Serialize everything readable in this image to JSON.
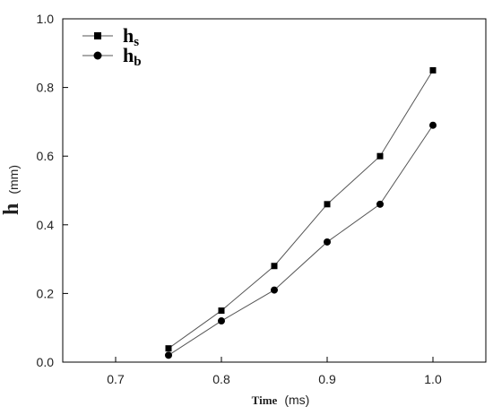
{
  "chart_data": {
    "type": "line",
    "x": [
      0.75,
      0.8,
      0.85,
      0.9,
      0.95,
      1.0
    ],
    "series": [
      {
        "name": "h_s",
        "label_main": "h",
        "label_sub": "s",
        "marker": "square",
        "color": "#000000",
        "values": [
          0.04,
          0.15,
          0.28,
          0.46,
          0.6,
          0.85
        ]
      },
      {
        "name": "h_b",
        "label_main": "h",
        "label_sub": "b",
        "marker": "circle",
        "color": "#000000",
        "values": [
          0.02,
          0.12,
          0.21,
          0.35,
          0.46,
          0.69
        ]
      }
    ],
    "xlabel": {
      "bold": "Time",
      "unit": "(ms)"
    },
    "ylabel": {
      "bold": "h",
      "unit": "(mm)"
    },
    "xlim": [
      0.65,
      1.05
    ],
    "ylim": [
      0.0,
      1.0
    ],
    "xticks": [
      "0.7",
      "0.8",
      "0.9",
      "1.0"
    ],
    "yticks": [
      "0.0",
      "0.2",
      "0.4",
      "0.6",
      "0.8",
      "1.0"
    ],
    "grid": false,
    "legend_position": "top-left",
    "line_color": "#555555"
  }
}
